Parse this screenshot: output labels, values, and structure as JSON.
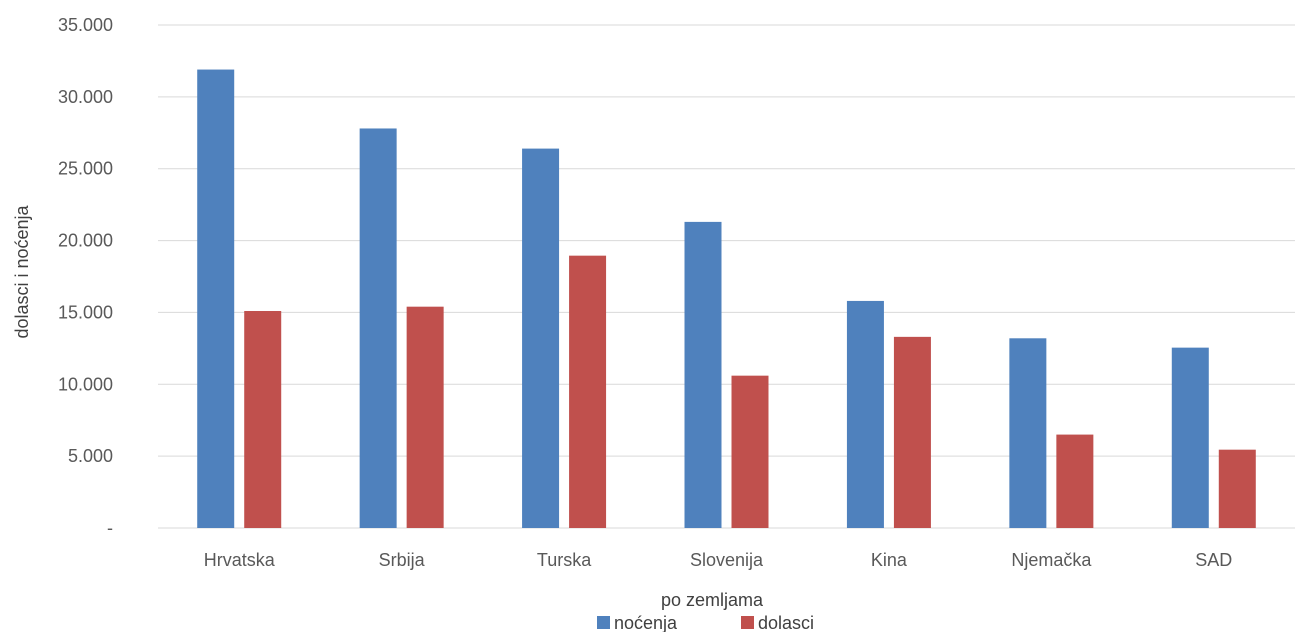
{
  "chart_data": {
    "type": "bar",
    "title": "",
    "xlabel": "po zemljama",
    "ylabel": "dolasci i noćenja",
    "ylim": [
      0,
      35000
    ],
    "yticks": [
      0,
      5000,
      10000,
      15000,
      20000,
      25000,
      30000,
      35000
    ],
    "ytick_labels": [
      "-",
      "5.000",
      "10.000",
      "15.000",
      "20.000",
      "25.000",
      "30.000",
      "35.000"
    ],
    "grid": true,
    "legend_position": "bottom",
    "categories": [
      "Hrvatska",
      "Srbija",
      "Turska",
      "Slovenija",
      "Kina",
      "Njemačka",
      "SAD"
    ],
    "series": [
      {
        "name": "noćenja",
        "color": "#4f81bd",
        "values": [
          31900,
          27800,
          26400,
          21300,
          15800,
          13200,
          12550
        ]
      },
      {
        "name": "dolasci",
        "color": "#c0504d",
        "values": [
          15100,
          15400,
          18950,
          10600,
          13300,
          6500,
          5450
        ]
      }
    ]
  }
}
